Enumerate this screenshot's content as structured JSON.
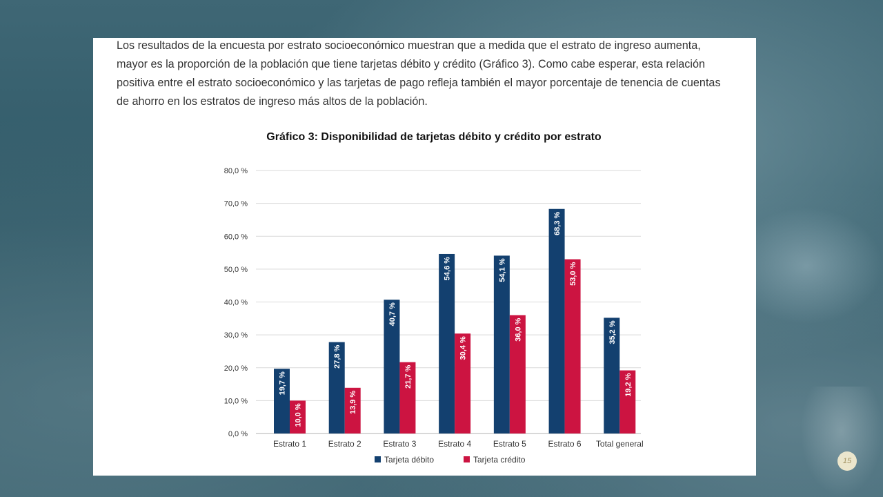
{
  "paragraph": "Los resultados de la encuesta por estrato socioeconómico muestran que a medida que el estrato de ingreso aumenta,\nmayor es la proporción de la población que tiene tarjetas débito y crédito (Gráfico 3). Como cabe esperar, esta relación\npositiva entre el estrato socioeconómico y las tarjetas de pago refleja también el mayor porcentaje de tenencia de cuentas\nde ahorro en los estratos de ingreso más altos de la población.",
  "page_number": "15",
  "chart_data": {
    "type": "bar",
    "title": "Gráfico 3: Disponibilidad de tarjetas débito y crédito por estrato",
    "xlabel": "",
    "ylabel": "",
    "ylim": [
      0,
      80
    ],
    "yticks": [
      "0,0 %",
      "10,0 %",
      "20,0 %",
      "30,0 %",
      "40,0 %",
      "50,0 %",
      "60,0 %",
      "70,0 %",
      "80,0 %"
    ],
    "categories": [
      "Estrato 1",
      "Estrato 2",
      "Estrato 3",
      "Estrato 4",
      "Estrato 5",
      "Estrato 6",
      "Total general"
    ],
    "series": [
      {
        "name": "Tarjeta débito",
        "color": "#13406f",
        "values": [
          19.7,
          27.8,
          40.7,
          54.6,
          54.1,
          68.3,
          35.2
        ],
        "labels": [
          "19,7 %",
          "27,8 %",
          "40,7 %",
          "54,6 %",
          "54,1 %",
          "68,3 %",
          "35,2 %"
        ]
      },
      {
        "name": "Tarjeta crédito",
        "color": "#cc1441",
        "values": [
          10.0,
          13.9,
          21.7,
          30.4,
          36.0,
          53.0,
          19.2
        ],
        "labels": [
          "10,0 %",
          "13,9 %",
          "21,7 %",
          "30,4 %",
          "36,0 %",
          "53,0 %",
          "19,2 %"
        ]
      }
    ],
    "grid": true,
    "legend_position": "bottom"
  }
}
